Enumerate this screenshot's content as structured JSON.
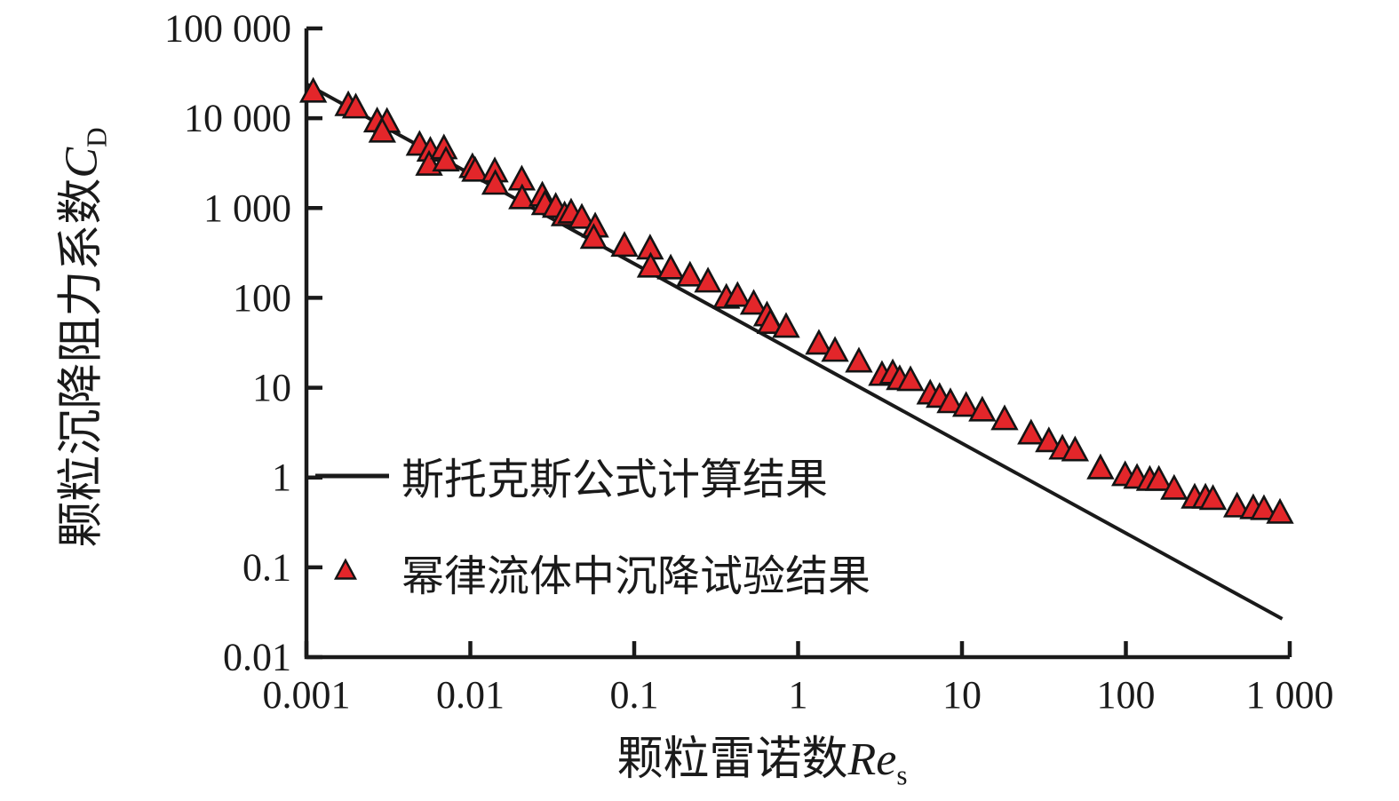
{
  "figure": {
    "background": "#ffffff",
    "ink_color": "#1a1a1a"
  },
  "chart_data": {
    "type": "scatter",
    "title": "",
    "xlabel": {
      "text": "颗粒雷诺数",
      "symbol": "Re",
      "sub": "s"
    },
    "ylabel": {
      "text": "颗粒沉降阻力系数",
      "symbol": "C",
      "sub": "D"
    },
    "x_axis": {
      "scale": "log",
      "min": 0.001,
      "max": 1000,
      "ticks": [
        {
          "value": 0.001,
          "label": "0.001"
        },
        {
          "value": 0.01,
          "label": "0.01"
        },
        {
          "value": 0.1,
          "label": "0.1"
        },
        {
          "value": 1,
          "label": "1"
        },
        {
          "value": 10,
          "label": "10"
        },
        {
          "value": 100,
          "label": "100"
        },
        {
          "value": 1000,
          "label": "1 000"
        }
      ]
    },
    "y_axis": {
      "scale": "log",
      "min": 0.01,
      "max": 100000,
      "ticks": [
        {
          "value": 100000,
          "label": "100 000"
        },
        {
          "value": 10000,
          "label": "10 000"
        },
        {
          "value": 1000,
          "label": "1 000"
        },
        {
          "value": 100,
          "label": "100"
        },
        {
          "value": 10,
          "label": "10"
        },
        {
          "value": 1,
          "label": "1"
        },
        {
          "value": 0.1,
          "label": "0.1"
        },
        {
          "value": 0.01,
          "label": "0.01"
        }
      ]
    },
    "style": {
      "ink": "#1a1a1a"
    },
    "legend": {
      "position": "inside lower-left"
    },
    "series": [
      {
        "name": "斯托克斯公式计算结果",
        "type": "line",
        "color": "#1a1a1a",
        "formula": "C_D = 24 / Re_s",
        "coefficient": 24,
        "re_range": [
          0.001,
          900
        ]
      },
      {
        "name": "幂律流体中沉降试验结果",
        "type": "scatter",
        "marker": "triangle-up",
        "fill": "#e3262a",
        "edge": "#141414",
        "points": [
          [
            0.0011,
            19500
          ],
          [
            0.0018,
            13800
          ],
          [
            0.002,
            13000
          ],
          [
            0.0027,
            9100
          ],
          [
            0.0031,
            9000
          ],
          [
            0.0029,
            7000
          ],
          [
            0.0049,
            5000
          ],
          [
            0.0057,
            4300
          ],
          [
            0.0056,
            3000
          ],
          [
            0.0069,
            4560
          ],
          [
            0.0071,
            3340
          ],
          [
            0.0103,
            2820
          ],
          [
            0.0107,
            2570
          ],
          [
            0.0141,
            2530
          ],
          [
            0.0142,
            1840
          ],
          [
            0.0206,
            2050
          ],
          [
            0.0207,
            1270
          ],
          [
            0.0275,
            1360
          ],
          [
            0.0285,
            1090
          ],
          [
            0.0332,
            1020
          ],
          [
            0.0376,
            820
          ],
          [
            0.0412,
            880
          ],
          [
            0.0479,
            770
          ],
          [
            0.0578,
            615
          ],
          [
            0.0566,
            460
          ],
          [
            0.0872,
            375
          ],
          [
            0.125,
            350
          ],
          [
            0.126,
            220
          ],
          [
            0.167,
            210
          ],
          [
            0.219,
            175
          ],
          [
            0.282,
            150
          ],
          [
            0.365,
            99
          ],
          [
            0.427,
            104
          ],
          [
            0.536,
            85
          ],
          [
            0.646,
            63
          ],
          [
            0.678,
            52
          ],
          [
            0.845,
            47
          ],
          [
            1.34,
            30.5
          ],
          [
            1.68,
            25.4
          ],
          [
            2.35,
            19.3
          ],
          [
            3.25,
            13.7
          ],
          [
            3.78,
            14.3
          ],
          [
            4.17,
            12.3
          ],
          [
            4.85,
            12.0
          ],
          [
            6.4,
            8.5
          ],
          [
            7.3,
            7.8
          ],
          [
            8.5,
            6.8
          ],
          [
            10.6,
            6.2
          ],
          [
            13.3,
            5.5
          ],
          [
            18.2,
            4.4
          ],
          [
            26.4,
            3.05
          ],
          [
            33.9,
            2.5
          ],
          [
            41,
            2.07
          ],
          [
            49,
            1.98
          ],
          [
            70,
            1.25
          ],
          [
            99,
            1.05
          ],
          [
            117,
            0.98
          ],
          [
            140,
            0.93
          ],
          [
            159,
            0.93
          ],
          [
            197,
            0.74
          ],
          [
            263,
            0.59
          ],
          [
            306,
            0.59
          ],
          [
            340,
            0.57
          ],
          [
            477,
            0.47
          ],
          [
            599,
            0.45
          ],
          [
            696,
            0.44
          ],
          [
            872,
            0.4
          ]
        ]
      }
    ]
  }
}
